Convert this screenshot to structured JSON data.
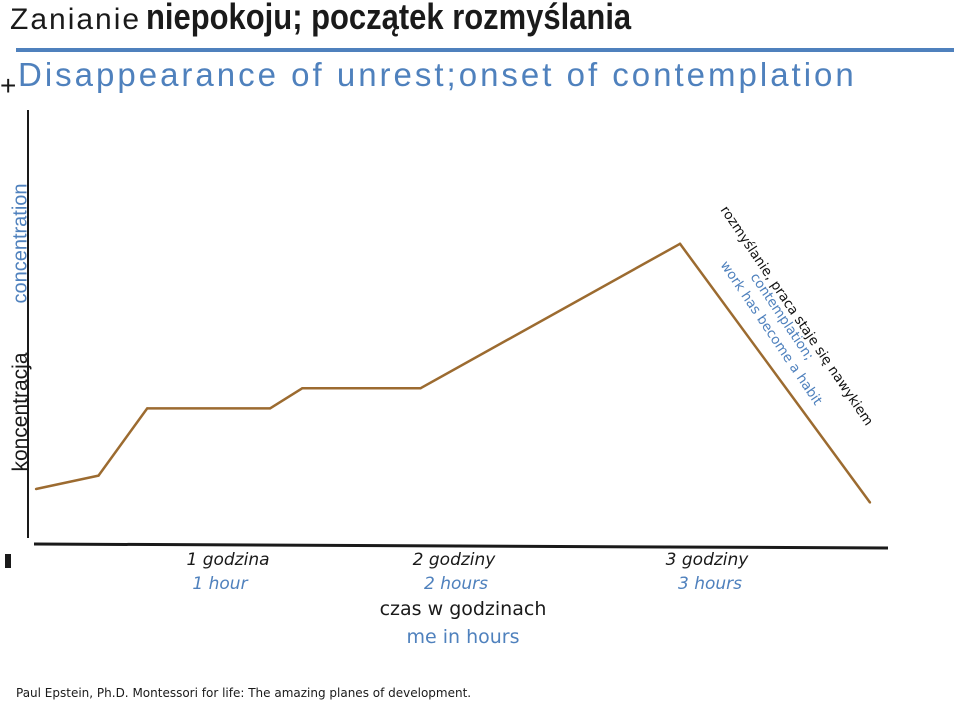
{
  "title": {
    "lead": "Zanianie",
    "bold": "niepokoju; początek rozmyślania"
  },
  "subtitle": "Disappearance of unrest;onset of contemplation",
  "axis_marks": {
    "plus": "+",
    "minus": "-"
  },
  "footer": "Paul Epstein, Ph.D. Montessori for life: The amazing planes of development.",
  "colors": {
    "line": "#9c6b30",
    "accent": "#4f81bd",
    "axis": "#1a1a1a"
  },
  "chart_data": {
    "type": "line",
    "title": "Zanianie niepokoju; początek rozmyślania",
    "subtitle": "Disappearance of unrest;onset of contemplation",
    "ylabel": "koncentracja",
    "ylabel_en": "concentration",
    "xlabel": "czas w godzinach",
    "xlabel_en": "me in hours",
    "xlim": [
      0,
      3.6
    ],
    "ylim": [
      0,
      10
    ],
    "y_ticks_shown": false,
    "x_ticks": [
      {
        "value": 1,
        "label": "1 godzina",
        "label_en": "1 hour"
      },
      {
        "value": 2,
        "label": "2 godziny",
        "label_en": "2 hours"
      },
      {
        "value": 3,
        "label": "3 godziny",
        "label_en": "3 hours"
      }
    ],
    "series": [
      {
        "values": [
          {
            "x": 0.0,
            "y": 1.1
          },
          {
            "x": 0.27,
            "y": 1.5
          },
          {
            "x": 0.48,
            "y": 3.5
          },
          {
            "x": 1.01,
            "y": 3.5
          },
          {
            "x": 1.15,
            "y": 4.1
          },
          {
            "x": 1.66,
            "y": 4.1
          },
          {
            "x": 2.78,
            "y": 8.4
          },
          {
            "x": 3.6,
            "y": 0.7
          }
        ]
      }
    ],
    "annotation": {
      "text": "rozmyślanie, praca staje się nawykiem",
      "text_en_line1": "contemplation;",
      "text_en_line2": "work has become a habit"
    },
    "grid": false,
    "legend": "none"
  }
}
